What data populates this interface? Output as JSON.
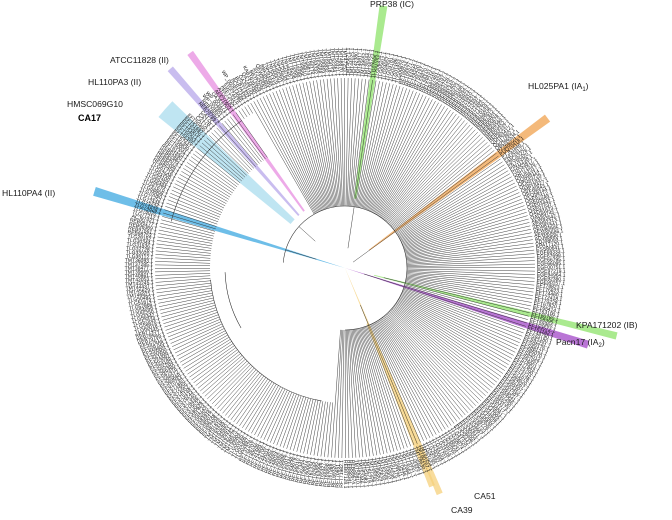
{
  "highlight_colors": {
    "green": "#8ee36a",
    "orange": "#f0a24e",
    "pink": "#e78ee0",
    "lavender": "#b7a7ea",
    "light_blue": "#a9dced",
    "blue": "#3ea8e0",
    "magenta": "#a247c7",
    "yellow": "#f6d07b"
  },
  "strain_labels": {
    "prp38": "PRP38 (IC)",
    "hl025pa1": "HL025PA1 (IA",
    "hl025pa1_sub": "1",
    "atcc11828": "ATCC11828 (II)",
    "hl110pa3": "HL110PA3 (II)",
    "hmsc069g10": "HMSC069G10",
    "ca17": "CA17",
    "hl110pa4": "HL110PA4 (II)",
    "kpa171202": "KPA171202 (IB)",
    "pacn17": "Pacn17 (IA",
    "pacn17_sub": "2",
    "ca51": "CA51",
    "ca39": "CA39"
  },
  "leaf_labels": [
    "AEE72452.1",
    "EGF74476.1",
    "WP_002514686.1",
    "BCB12332.1",
    "BCB11332.1",
    "OAJ53155.1",
    "QAZ48790.1",
    "KAB1939368.1",
    "BBJ75926.1",
    "AYZ24592.1",
    "QEW95864.1",
    "BBK84580.1",
    "TNH51433.1",
    "TNH55876.1",
    "TNH56201.1",
    "TNH55650.1",
    "TNH49764.1",
    "TNH46267.1",
    "TMT78208.1",
    "TMT75689.1",
    "TMT72895.1",
    "TMT69810.1",
    "TMT68874.1",
    "TMT66174.1",
    "TMT64332.1",
    "TMT62668.1",
    "TMT58469.1",
    "TMT55832.1",
    "TMT54118.1",
    "TMT52264.1",
    "TMT50321.1",
    "TMT48870.1",
    "TMT47253.1",
    "TMT45671.1",
    "TMT44025.1",
    "TMT42380.1",
    "TMT40917.1",
    "TMT39552.1",
    "TMT38164.1",
    "TMT36723.1",
    "TLG07895.1",
    "TLG06434.1",
    "TLG05912.1",
    "TLG04657.1",
    "TLG03781.1",
    "TLG02286.1",
    "TLG01453.1",
    "TLG00879.1",
    "RFT69234.1",
    "RFT65571.1",
    "RFT61834.1",
    "RFT58420.1",
    "RFT55137.1",
    "REL59870.1",
    "REL58433.1",
    "REL57216.1",
    "REB87461.1",
    "REB86324.1",
    "REB85197.1",
    "REB83728.1",
    "REB82615.1",
    "REB81402.1",
    "REB80273.1",
    "REB79168.1",
    "REB78054.1",
    "REB76923.1",
    "REB75810.1",
    "REB74621.1",
    "REB73497.1",
    "REB72384.1",
    "REB71260.1",
    "REB70149.1",
    "REB69036.1",
    "REB67912.1",
    "REB66801.1",
    "REB65678.1",
    "REB64569.1",
    "REB63452.1",
    "REB62337.1",
    "QDH63412.1",
    "QCI17862.1",
    "QBO96534.1",
    "PZZ66221.1",
    "PUQ70418.1",
    "PTJ51846.1",
    "PNU59127.1",
    "PMC43276.1",
    "PKY65420.1",
    "PIN11238.1",
    "PHX53817.1",
    "OSH71526.1",
    "ORU62317.1",
    "OQN98114.1",
    "OPG43726.1",
    "ONS51837.1",
    "OMP18427.1",
    "OKF66843.1",
    "OFQ58244.1",
    "OAE87412.1",
    "OAE05689.1",
    "OAE03442.1",
    "OAE01537.1",
    "OAD91623.1",
    "OAD89745.1",
    "AEW83542.1",
    "AEW82313.1",
    "AEW81541.1",
    "AEW80995.1",
    "AEW80686.1",
    "ADJ98898.1",
    "ADJ98093.1",
    "KPA17120.1",
    "ESS80641.1",
    "EGF68333.1",
    "EGF67698.1",
    "EGF66795.1",
    "EGF66095.1",
    "EGF00751.1",
    "EGE97219.1",
    "EGE94964.1",
    "EGE92380.1",
    "EGE90157.1",
    "EFT78823.1",
    "EFT76823.1",
    "EFT74460.1",
    "EFT72418.1",
    "EFT70228.1",
    "EFT67820.1",
    "EFT65414.1",
    "EFT63100.1",
    "EFT60780.1",
    "EFT58395.1",
    "EFT55980.1",
    "EFT53572.1",
    "EFT51182.1",
    "EFT48790.1",
    "EFS94180.1",
    "EFS92231.1",
    "EFS90176.1",
    "EFS88121.1",
    "EFS86070.1",
    "EFS84012.1",
    "EFS81957.1",
    "EFS79901.1",
    "EFS77843.1",
    "EFS75790.1",
    "EFS73732.1",
    "EFS71678.1",
    "EFS69620.1",
    "EFS67567.1",
    "EFS65507.1",
    "EFS63452.1",
    "EFS61397.1",
    "EFS59341.1",
    "EFS57286.1",
    "EFS55230.1",
    "EFS53173.1",
    "EFS51117.1",
    "EFS49061.1",
    "EFS47005.1",
    "EFS44948.1",
    "EFS42892.1",
    "EFS40836.1",
    "EFS38779.1",
    "EFS36723.1",
    "EFS34667.1",
    "EFS32611.1",
    "EFS30554.1",
    "EFS28498.1",
    "EFS26442.1",
    "TLG41320.1",
    "TLG39874.1",
    "TLG38241.1",
    "TLG36605.1",
    "TLG34972.1",
    "TLG33338.1",
    "TLG31701.1",
    "TLG30068.1",
    "TLG28432.1",
    "TLG26795.1",
    "TMT81904.1",
    "TMT80267.1",
    "TMT78630.1",
    "TMT76994.1",
    "TMT75357.1",
    "TMT73721.1",
    "TMT72084.1",
    "TMT70448.1",
    "TMT68811.1",
    "TMT67175.1",
    "TMT65538.1",
    "TMT63902.1",
    "TMT62265.1",
    "TMT60629.1",
    "TMT58992.1",
    "TMT57356.1",
    "TMT55719.1",
    "TMT54083.1",
    "TMT52446.1",
    "TMT50810.1",
    "REB89574.1",
    "REB88341.1",
    "REB87128.1",
    "RFT71982.1",
    "RFT70651.1",
    "RFT69320.1",
    "RFT67989.1",
    "RFT66658.1",
    "RFT65327.1",
    "RFT63996.1",
    "RFT62665.1",
    "RFT61334.1",
    "RFT60003.1",
    "RFT58672.1",
    "RFT57341.1",
    "RFT56010.1",
    "RFT54679.1",
    "RFT53348.1",
    "RFT52017.1",
    "RFT50686.1",
    "RFT49355.1",
    "RFT48024.1",
    "RFT46693.1",
    "RFT45362.1",
    "RFT44031.1",
    "RFT42700.1",
    "RFT41369.1",
    "RFT40038.1",
    "RFT38707.1",
    "RFT37376.1",
    "TLG02897.1",
    "TLG01566.1",
    "TLG00235.1",
    "TMT99904.1",
    "TMT98573.1",
    "TMT97242.1",
    "TMT95911.1",
    "TMT94580.1",
    "TMT93249.1",
    "TMT91918.1",
    "EFS87204.1",
    "EFS86108.1",
    "EFS85012.1",
    "EFS83916.1",
    "EFS82820.1",
    "EFS81724.1",
    "EFS80628.1",
    "EFS79532.1",
    "EFS78436.1",
    "EFS77340.1",
    "EFS76244.1",
    "EFS75148.1",
    "EFS74052.1",
    "EFS72956.1",
    "EFS71860.1",
    "EFS70764.1",
    "EFS69668.1",
    "EFS68572.1",
    "EFS67476.1",
    "EFS66380.1",
    "EFS65284.1",
    "EFS64188.1",
    "EFS63092.1",
    "EFS61996.1",
    "EFS60900.1",
    "EFS59804.1",
    "EFS58708.1",
    "EFS57612.1",
    "REB79789.1",
    "REB78617.1",
    "REB77445.1",
    "TLG60018.1",
    "TLG58826.1",
    "TLG57634.1",
    "TLG56442.1",
    "TLG55250.1",
    "TLG54058.1",
    "TLG52866.1",
    "TLG51674.1",
    "TLG50482.1",
    "TMT46821.1",
    "TMT45629.1",
    "TMT44437.1",
    "TMT43245.1",
    "TMT42053.1",
    "TMT40861.1",
    "TMT39669.1",
    "TMT38477.1",
    "TMT37285.1",
    "TMT36093.1",
    "TLG35112.1",
    "TLG33920.1",
    "TLG32728.1",
    "TLG31536.1",
    "TLG30344.1",
    "TLG29152.1",
    "REB98753.1",
    "REB97561.1",
    "REB96369.1",
    "REB95177.1",
    "ACJ97421.1",
    "TLG77212.1",
    "TLG76020.1",
    "TLG74828.1",
    "TLG73636.1",
    "TLG72444.1",
    "TLG71252.1",
    "TLG70060.1",
    "TLG68868.1",
    "TLG67676.1",
    "TLG66484.1",
    "TLG65292.1",
    "TLG64100.1",
    "TLG62908.1",
    "TLG61716.1",
    "REB86458.1",
    "REB85266.1",
    "REB84074.1",
    "REB82882.1",
    "REB81690.1",
    "EFT61223.1",
    "EFT60031.1",
    "EFT58839.1",
    "EFT57647.1",
    "EFT56455.1",
    "EFT55263.1",
    "EFT54071.1",
    "EFT52879.1",
    "EFT51687.1",
    "EFT50495.1",
    "CA17A.1",
    "CA17B.1",
    "CA17C.1",
    "REB79789.2",
    "REB78657.1",
    "WP_004801.1",
    "WP_004802.1",
    "OAJ53171.1",
    "AEE21903.1",
    "ATCC1182.1"
  ]
}
